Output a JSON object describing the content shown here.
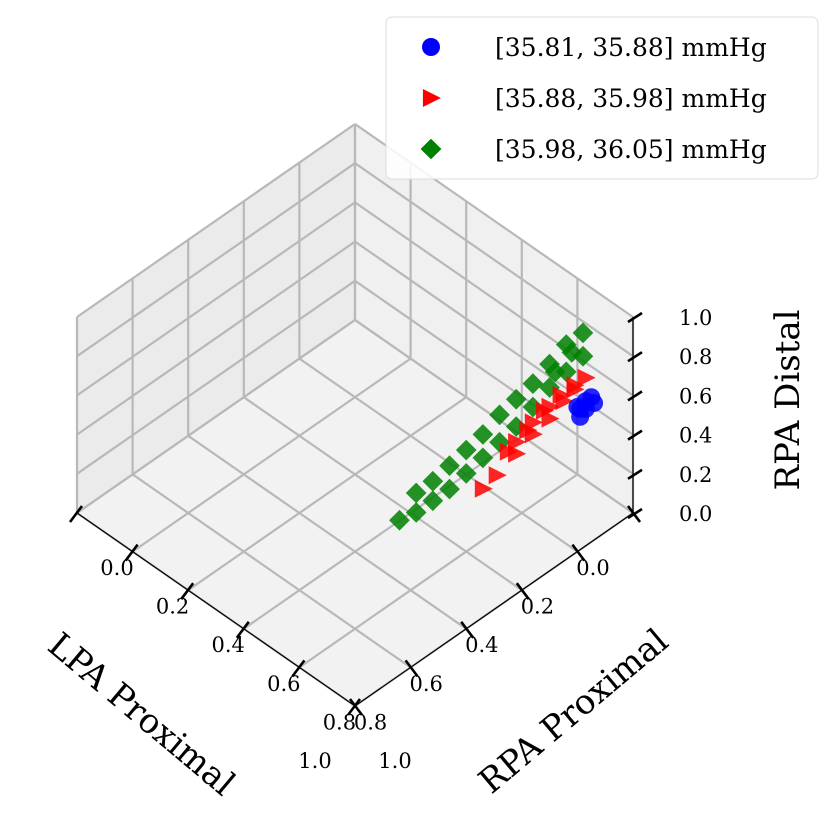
{
  "chart_data": {
    "type": "scatter",
    "projection": "3d",
    "axes": {
      "x": {
        "label": "LPA Proximal",
        "range": [
          0.0,
          1.0
        ],
        "ticks": [
          "0.0",
          "0.2",
          "0.4",
          "0.6",
          "0.8",
          "1.0"
        ]
      },
      "y": {
        "label": "RPA Proximal",
        "range": [
          0.0,
          1.0
        ],
        "ticks": [
          "0.0",
          "0.2",
          "0.4",
          "0.6",
          "0.8",
          "1.0"
        ]
      },
      "z": {
        "label": "RPA Distal",
        "range": [
          0.0,
          1.0
        ],
        "ticks": [
          "0.0",
          "0.2",
          "0.4",
          "0.6",
          "0.8",
          "1.0"
        ]
      }
    },
    "grid": true,
    "legend": "top-right",
    "series": [
      {
        "name": "[35.81, 35.88] mmHg",
        "color": "#0000ff",
        "marker": "circle",
        "points": [
          [
            0.1,
            0.95,
            0.64
          ],
          [
            0.11,
            0.94,
            0.62
          ],
          [
            0.12,
            0.95,
            0.6
          ],
          [
            0.12,
            0.93,
            0.58
          ],
          [
            0.13,
            0.94,
            0.56
          ],
          [
            0.13,
            0.93,
            0.6
          ],
          [
            0.1,
            0.96,
            0.62
          ]
        ]
      },
      {
        "name": "[35.88, 35.98] mmHg",
        "color": "#ff0000",
        "marker": "triangle-right",
        "points": [
          [
            0.1,
            0.93,
            0.72
          ],
          [
            0.13,
            0.92,
            0.68
          ],
          [
            0.16,
            0.91,
            0.64
          ],
          [
            0.2,
            0.9,
            0.58
          ],
          [
            0.24,
            0.88,
            0.52
          ],
          [
            0.28,
            0.86,
            0.44
          ],
          [
            0.34,
            0.85,
            0.38
          ],
          [
            0.18,
            0.92,
            0.7
          ],
          [
            0.22,
            0.9,
            0.64
          ],
          [
            0.26,
            0.88,
            0.56
          ],
          [
            0.31,
            0.86,
            0.48
          ],
          [
            0.38,
            0.84,
            0.34
          ],
          [
            0.15,
            0.94,
            0.74
          ],
          [
            0.21,
            0.91,
            0.66
          ],
          [
            0.25,
            0.89,
            0.6
          ],
          [
            0.29,
            0.87,
            0.52
          ]
        ]
      },
      {
        "name": "[35.98, 36.05] mmHg",
        "color": "#008000",
        "marker": "diamond",
        "points": [
          [
            0.08,
            0.9,
            0.78
          ],
          [
            0.12,
            0.88,
            0.72
          ],
          [
            0.16,
            0.86,
            0.66
          ],
          [
            0.2,
            0.84,
            0.58
          ],
          [
            0.24,
            0.82,
            0.5
          ],
          [
            0.28,
            0.8,
            0.44
          ],
          [
            0.32,
            0.78,
            0.38
          ],
          [
            0.36,
            0.76,
            0.32
          ],
          [
            0.4,
            0.74,
            0.26
          ],
          [
            0.44,
            0.72,
            0.22
          ],
          [
            0.48,
            0.7,
            0.18
          ],
          [
            0.52,
            0.68,
            0.16
          ],
          [
            0.1,
            0.86,
            0.82
          ],
          [
            0.14,
            0.84,
            0.74
          ],
          [
            0.18,
            0.82,
            0.66
          ],
          [
            0.22,
            0.8,
            0.6
          ],
          [
            0.26,
            0.78,
            0.54
          ],
          [
            0.3,
            0.76,
            0.46
          ],
          [
            0.34,
            0.74,
            0.4
          ],
          [
            0.38,
            0.72,
            0.34
          ],
          [
            0.42,
            0.7,
            0.28
          ],
          [
            0.46,
            0.68,
            0.24
          ],
          [
            0.06,
            0.88,
            0.86
          ],
          [
            0.09,
            0.87,
            0.78
          ],
          [
            0.13,
            0.85,
            0.7
          ]
        ]
      }
    ]
  }
}
